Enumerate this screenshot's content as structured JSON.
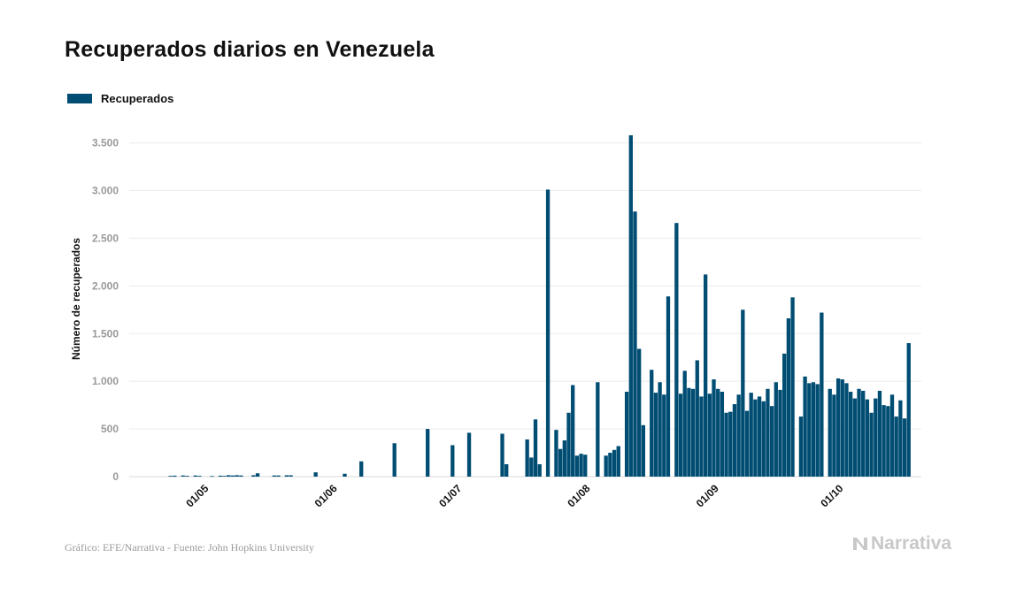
{
  "title": "Recuperados diarios en Venezuela",
  "legend": {
    "label": "Recuperados",
    "color": "#004d73"
  },
  "footer": {
    "source": "Gráfico: EFE/Narrativa - Fuente: John Hopkins University"
  },
  "brand": {
    "name": "Narrativa",
    "color": "#c8c8c8"
  },
  "chart_data": {
    "type": "bar",
    "ylabel": "Número de recuperados",
    "xlabel": "",
    "ylim": [
      0,
      3500
    ],
    "yticks": [
      0,
      500,
      1000,
      1500,
      2000,
      2500,
      3000,
      3500
    ],
    "ytick_labels": [
      "0",
      "500",
      "1.000",
      "1.500",
      "2.000",
      "2.500",
      "3.000",
      "3.500"
    ],
    "x_start": "2020-04-13",
    "x_end": "2020-10-21",
    "xticks": [
      "2020-05-01",
      "2020-06-01",
      "2020-07-01",
      "2020-08-01",
      "2020-09-01",
      "2020-10-01"
    ],
    "xtick_labels": [
      "01/05",
      "01/06",
      "01/07",
      "01/08",
      "01/09",
      "01/10"
    ],
    "grid": true,
    "legend_position": "top-left",
    "color": "#004d73",
    "series": [
      {
        "name": "Recuperados",
        "points": [
          [
            "2020-04-23",
            8
          ],
          [
            "2020-04-24",
            10
          ],
          [
            "2020-04-26",
            12
          ],
          [
            "2020-04-27",
            8
          ],
          [
            "2020-04-29",
            12
          ],
          [
            "2020-04-30",
            8
          ],
          [
            "2020-05-03",
            6
          ],
          [
            "2020-05-05",
            10
          ],
          [
            "2020-05-06",
            8
          ],
          [
            "2020-05-07",
            15
          ],
          [
            "2020-05-08",
            12
          ],
          [
            "2020-05-09",
            15
          ],
          [
            "2020-05-10",
            12
          ],
          [
            "2020-05-13",
            15
          ],
          [
            "2020-05-14",
            35
          ],
          [
            "2020-05-18",
            12
          ],
          [
            "2020-05-19",
            12
          ],
          [
            "2020-05-21",
            14
          ],
          [
            "2020-05-22",
            14
          ],
          [
            "2020-05-28",
            45
          ],
          [
            "2020-06-04",
            30
          ],
          [
            "2020-06-08",
            160
          ],
          [
            "2020-06-16",
            350
          ],
          [
            "2020-06-24",
            500
          ],
          [
            "2020-06-30",
            330
          ],
          [
            "2020-07-04",
            460
          ],
          [
            "2020-07-12",
            450
          ],
          [
            "2020-07-13",
            130
          ],
          [
            "2020-07-18",
            390
          ],
          [
            "2020-07-19",
            200
          ],
          [
            "2020-07-20",
            600
          ],
          [
            "2020-07-21",
            130
          ],
          [
            "2020-07-23",
            3010
          ],
          [
            "2020-07-25",
            490
          ],
          [
            "2020-07-26",
            290
          ],
          [
            "2020-07-27",
            380
          ],
          [
            "2020-07-28",
            670
          ],
          [
            "2020-07-29",
            960
          ],
          [
            "2020-07-30",
            220
          ],
          [
            "2020-07-31",
            240
          ],
          [
            "2020-08-01",
            230
          ],
          [
            "2020-08-04",
            990
          ],
          [
            "2020-08-06",
            220
          ],
          [
            "2020-08-07",
            250
          ],
          [
            "2020-08-08",
            280
          ],
          [
            "2020-08-09",
            320
          ],
          [
            "2020-08-11",
            890
          ],
          [
            "2020-08-12",
            3580
          ],
          [
            "2020-08-13",
            2780
          ],
          [
            "2020-08-14",
            1340
          ],
          [
            "2020-08-15",
            540
          ],
          [
            "2020-08-17",
            1120
          ],
          [
            "2020-08-18",
            880
          ],
          [
            "2020-08-19",
            990
          ],
          [
            "2020-08-20",
            860
          ],
          [
            "2020-08-21",
            1890
          ],
          [
            "2020-08-23",
            2660
          ],
          [
            "2020-08-24",
            870
          ],
          [
            "2020-08-25",
            1110
          ],
          [
            "2020-08-26",
            930
          ],
          [
            "2020-08-27",
            920
          ],
          [
            "2020-08-28",
            1220
          ],
          [
            "2020-08-29",
            840
          ],
          [
            "2020-08-30",
            2120
          ],
          [
            "2020-08-31",
            870
          ],
          [
            "2020-09-01",
            1020
          ],
          [
            "2020-09-02",
            920
          ],
          [
            "2020-09-03",
            890
          ],
          [
            "2020-09-04",
            670
          ],
          [
            "2020-09-05",
            680
          ],
          [
            "2020-09-06",
            760
          ],
          [
            "2020-09-07",
            860
          ],
          [
            "2020-09-08",
            1750
          ],
          [
            "2020-09-09",
            690
          ],
          [
            "2020-09-10",
            880
          ],
          [
            "2020-09-11",
            810
          ],
          [
            "2020-09-12",
            840
          ],
          [
            "2020-09-13",
            790
          ],
          [
            "2020-09-14",
            920
          ],
          [
            "2020-09-15",
            740
          ],
          [
            "2020-09-16",
            990
          ],
          [
            "2020-09-17",
            910
          ],
          [
            "2020-09-18",
            1290
          ],
          [
            "2020-09-19",
            1660
          ],
          [
            "2020-09-20",
            1880
          ],
          [
            "2020-09-22",
            630
          ],
          [
            "2020-09-23",
            1050
          ],
          [
            "2020-09-24",
            980
          ],
          [
            "2020-09-25",
            990
          ],
          [
            "2020-09-26",
            970
          ],
          [
            "2020-09-27",
            1720
          ],
          [
            "2020-09-29",
            920
          ],
          [
            "2020-09-30",
            860
          ],
          [
            "2020-10-01",
            1030
          ],
          [
            "2020-10-02",
            1020
          ],
          [
            "2020-10-03",
            980
          ],
          [
            "2020-10-04",
            890
          ],
          [
            "2020-10-05",
            820
          ],
          [
            "2020-10-06",
            920
          ],
          [
            "2020-10-07",
            900
          ],
          [
            "2020-10-08",
            810
          ],
          [
            "2020-10-09",
            670
          ],
          [
            "2020-10-10",
            820
          ],
          [
            "2020-10-11",
            900
          ],
          [
            "2020-10-12",
            750
          ],
          [
            "2020-10-13",
            740
          ],
          [
            "2020-10-14",
            860
          ],
          [
            "2020-10-15",
            630
          ],
          [
            "2020-10-16",
            800
          ],
          [
            "2020-10-17",
            610
          ],
          [
            "2020-10-18",
            1400
          ]
        ]
      }
    ]
  }
}
